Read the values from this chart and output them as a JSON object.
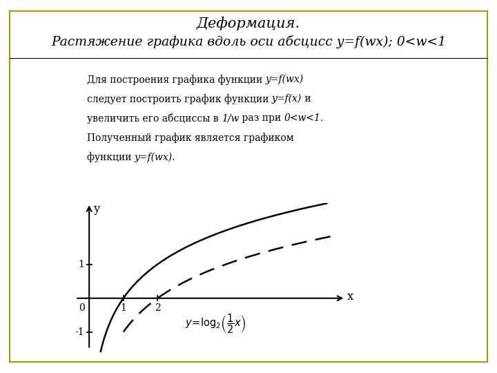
{
  "title_line1": "Деформация.",
  "title_line2": "Растяжение графика вдоль оси абсцисс y=f(wx); 0<w<1",
  "description_plain": "Для построения графика функции ",
  "description": "Для построения графика функции y=f(wx)\nследует построить график функции y=f(x) и\nувеличить его абсциссы в 1/w раз при 0<w<1.\nПолученный график является графиком\nфункции y=f(wx).",
  "border_color": "#b5960a",
  "background_color": "#ffffff",
  "curve1_color": "#000000",
  "curve2_color": "#000000",
  "curve1_lw": 1.8,
  "curve2_lw": 1.8,
  "xlim": [
    -0.5,
    7.5
  ],
  "ylim": [
    -1.6,
    2.8
  ],
  "x_label": "x",
  "y_label": "y"
}
